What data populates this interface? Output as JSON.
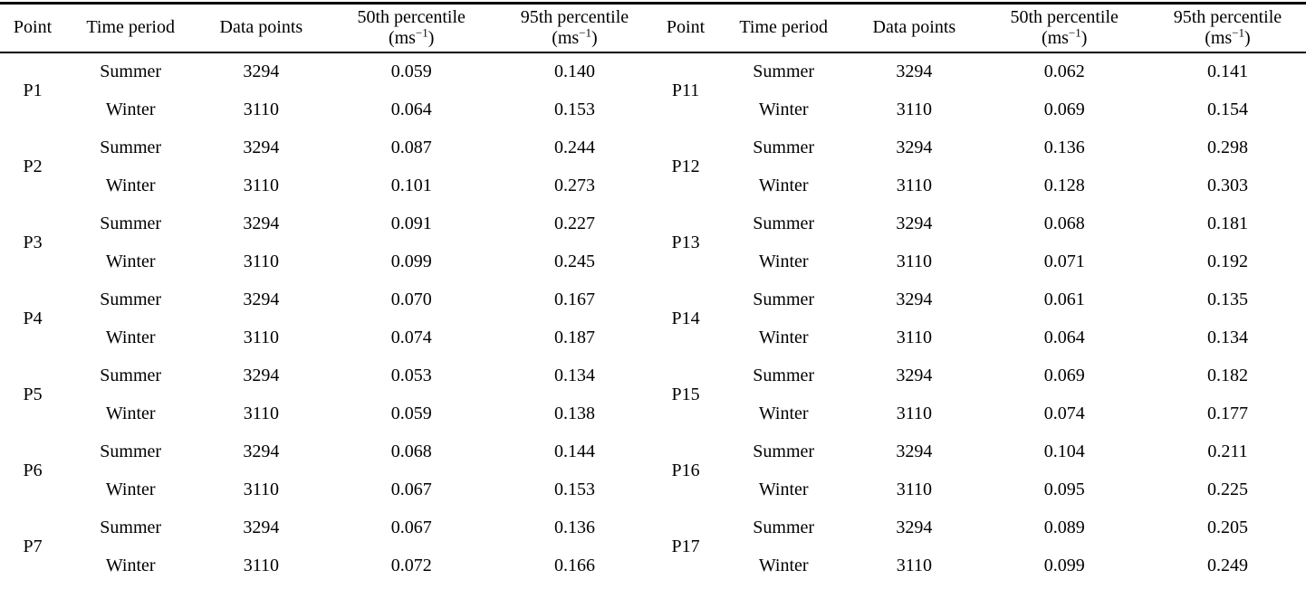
{
  "headers": {
    "point": "Point",
    "time_period": "Time period",
    "data_points": "Data points",
    "p50_title": "50th percentile",
    "p95_title": "95th percentile",
    "unit_open": "(ms",
    "unit_exp": "−1",
    "unit_close": ")"
  },
  "tables": [
    {
      "side": "left",
      "groups": [
        {
          "point": "P1",
          "rows": [
            [
              "Summer",
              "3294",
              "0.059",
              "0.140"
            ],
            [
              "Winter",
              "3110",
              "0.064",
              "0.153"
            ]
          ]
        },
        {
          "point": "P2",
          "rows": [
            [
              "Summer",
              "3294",
              "0.087",
              "0.244"
            ],
            [
              "Winter",
              "3110",
              "0.101",
              "0.273"
            ]
          ]
        },
        {
          "point": "P3",
          "rows": [
            [
              "Summer",
              "3294",
              "0.091",
              "0.227"
            ],
            [
              "Winter",
              "3110",
              "0.099",
              "0.245"
            ]
          ]
        },
        {
          "point": "P4",
          "rows": [
            [
              "Summer",
              "3294",
              "0.070",
              "0.167"
            ],
            [
              "Winter",
              "3110",
              "0.074",
              "0.187"
            ]
          ]
        },
        {
          "point": "P5",
          "rows": [
            [
              "Summer",
              "3294",
              "0.053",
              "0.134"
            ],
            [
              "Winter",
              "3110",
              "0.059",
              "0.138"
            ]
          ]
        },
        {
          "point": "P6",
          "rows": [
            [
              "Summer",
              "3294",
              "0.068",
              "0.144"
            ],
            [
              "Winter",
              "3110",
              "0.067",
              "0.153"
            ]
          ]
        },
        {
          "point": "P7",
          "rows": [
            [
              "Summer",
              "3294",
              "0.067",
              "0.136"
            ],
            [
              "Winter",
              "3110",
              "0.072",
              "0.166"
            ]
          ]
        }
      ]
    },
    {
      "side": "right",
      "groups": [
        {
          "point": "P11",
          "rows": [
            [
              "Summer",
              "3294",
              "0.062",
              "0.141"
            ],
            [
              "Winter",
              "3110",
              "0.069",
              "0.154"
            ]
          ]
        },
        {
          "point": "P12",
          "rows": [
            [
              "Summer",
              "3294",
              "0.136",
              "0.298"
            ],
            [
              "Winter",
              "3110",
              "0.128",
              "0.303"
            ]
          ]
        },
        {
          "point": "P13",
          "rows": [
            [
              "Summer",
              "3294",
              "0.068",
              "0.181"
            ],
            [
              "Winter",
              "3110",
              "0.071",
              "0.192"
            ]
          ]
        },
        {
          "point": "P14",
          "rows": [
            [
              "Summer",
              "3294",
              "0.061",
              "0.135"
            ],
            [
              "Winter",
              "3110",
              "0.064",
              "0.134"
            ]
          ]
        },
        {
          "point": "P15",
          "rows": [
            [
              "Summer",
              "3294",
              "0.069",
              "0.182"
            ],
            [
              "Winter",
              "3110",
              "0.074",
              "0.177"
            ]
          ]
        },
        {
          "point": "P16",
          "rows": [
            [
              "Summer",
              "3294",
              "0.104",
              "0.211"
            ],
            [
              "Winter",
              "3110",
              "0.095",
              "0.225"
            ]
          ]
        },
        {
          "point": "P17",
          "rows": [
            [
              "Summer",
              "3294",
              "0.089",
              "0.205"
            ],
            [
              "Winter",
              "3110",
              "0.099",
              "0.249"
            ]
          ]
        }
      ]
    }
  ]
}
